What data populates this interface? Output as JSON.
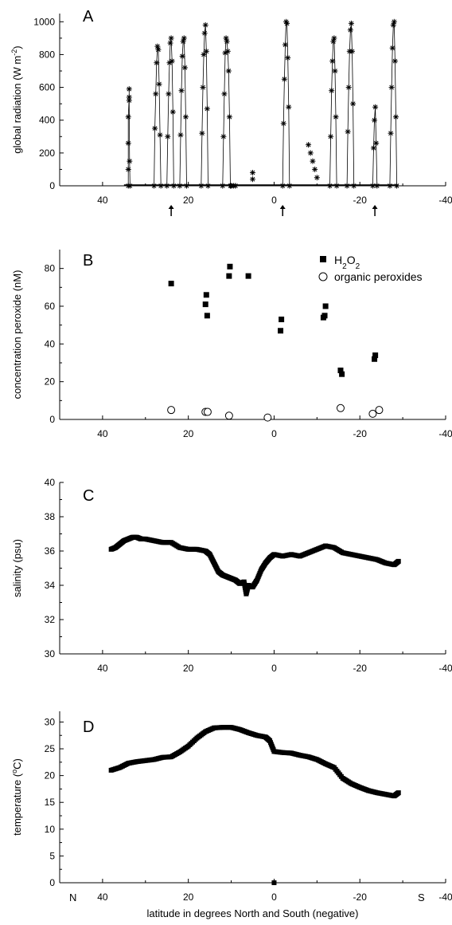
{
  "chart_data": [
    {
      "panel": "A",
      "type": "line",
      "ylabel": "global radiation (W m-2)",
      "ylabel_parts": [
        "global radiation (W m",
        "-2",
        ")"
      ],
      "xlim": [
        50,
        -40
      ],
      "ylim": [
        0,
        1050
      ],
      "xticks": [
        40,
        20,
        0,
        -20,
        -40
      ],
      "yticks": [
        0,
        200,
        400,
        600,
        800,
        1000
      ],
      "arrows_x": [
        24,
        -2,
        -23.5
      ],
      "marker": "asterisk",
      "series": [
        {
          "x": [
            34,
            34,
            34,
            34,
            33.8,
            33.8,
            33.8,
            33.7,
            33.6
          ],
          "y": [
            0,
            100,
            260,
            420,
            540,
            590,
            520,
            150,
            0
          ]
        },
        {
          "x": [
            28,
            27.8,
            27.6,
            27.4,
            27.2,
            27,
            26.8,
            26.6,
            26.4
          ],
          "y": [
            0,
            350,
            560,
            750,
            850,
            830,
            620,
            310,
            0
          ]
        },
        {
          "x": [
            25,
            24.8,
            24.6,
            24.4,
            24.2,
            24,
            23.8,
            23.6,
            23.4
          ],
          "y": [
            0,
            300,
            560,
            750,
            870,
            900,
            760,
            450,
            0
          ]
        },
        {
          "x": [
            22,
            21.8,
            21.6,
            21.4,
            21.2,
            21,
            20.8,
            20.6,
            20.4
          ],
          "y": [
            0,
            310,
            580,
            790,
            880,
            900,
            720,
            420,
            0
          ]
        },
        {
          "x": [
            17,
            16.8,
            16.6,
            16.4,
            16.2,
            16,
            15.8,
            15.6,
            15.4
          ],
          "y": [
            0,
            320,
            600,
            800,
            930,
            980,
            820,
            470,
            0
          ]
        },
        {
          "x": [
            12,
            11.8,
            11.6,
            11.4,
            11.2,
            11,
            10.8,
            10.6,
            10.4,
            10.2
          ],
          "y": [
            0,
            300,
            560,
            810,
            900,
            880,
            820,
            700,
            420,
            0
          ]
        },
        {
          "x": [
            -2,
            -2.2,
            -2.4,
            -2.6,
            -2.8,
            -3,
            -3.2,
            -3.4,
            -3.6
          ],
          "y": [
            0,
            380,
            650,
            860,
            1000,
            990,
            780,
            480,
            0
          ]
        },
        {
          "x": [
            -13,
            -13.2,
            -13.4,
            -13.6,
            -13.8,
            -14,
            -14.2,
            -14.4,
            -14.6
          ],
          "y": [
            0,
            300,
            580,
            760,
            880,
            900,
            700,
            420,
            0
          ]
        },
        {
          "x": [
            -17,
            -17.2,
            -17.4,
            -17.6,
            -17.8,
            -18,
            -18.2,
            -18.4,
            -18.6
          ],
          "y": [
            0,
            330,
            600,
            820,
            950,
            990,
            820,
            500,
            0
          ]
        },
        {
          "x": [
            -23,
            -23.2,
            -23.4,
            -23.6,
            -23.8,
            -24
          ],
          "y": [
            0,
            230,
            400,
            480,
            260,
            0
          ]
        },
        {
          "x": [
            -27,
            -27.2,
            -27.4,
            -27.6,
            -27.8,
            -28,
            -28.2,
            -28.4,
            -28.6
          ],
          "y": [
            0,
            320,
            600,
            840,
            980,
            1000,
            760,
            420,
            0
          ]
        }
      ],
      "extra_points": {
        "x": [
          5,
          5,
          9.5,
          10,
          9,
          -8,
          -8.5,
          -9,
          -9.5,
          -10
        ],
        "y": [
          80,
          40,
          0,
          0,
          0,
          250,
          200,
          150,
          100,
          50
        ]
      }
    },
    {
      "panel": "B",
      "type": "scatter",
      "ylabel": "concentration peroxide (nM)",
      "xlim": [
        50,
        -40
      ],
      "ylim": [
        0,
        90
      ],
      "xticks": [
        40,
        20,
        0,
        -20,
        -40
      ],
      "yticks": [
        0,
        20,
        40,
        60,
        80
      ],
      "series": [
        {
          "name": "H2O2",
          "name_parts": [
            "H",
            "2",
            "O",
            "2"
          ],
          "marker": "square",
          "x": [
            24,
            16,
            15.8,
            15.6,
            10.5,
            10.3,
            6,
            -1.5,
            -1.7,
            -11.5,
            -11.8,
            -12,
            -15.5,
            -15.8,
            -23.4,
            -23.6
          ],
          "y": [
            72,
            61,
            66,
            55,
            76,
            81,
            76,
            47,
            53,
            54,
            55,
            60,
            26,
            24,
            32,
            34
          ]
        },
        {
          "name": "organic peroxides",
          "marker": "circle",
          "x": [
            24,
            16,
            15.5,
            10.5,
            1.5,
            -15.5,
            -23,
            -24.5
          ],
          "y": [
            5,
            4,
            4,
            2,
            1,
            6,
            3,
            5
          ]
        }
      ]
    },
    {
      "panel": "C",
      "type": "scatter",
      "ylabel": "salinity (psu)",
      "xlim": [
        50,
        -40
      ],
      "ylim": [
        30,
        40
      ],
      "xticks": [
        40,
        20,
        0,
        -20,
        -40
      ],
      "yticks": [
        30,
        32,
        34,
        36,
        38,
        40
      ],
      "marker": "square",
      "x": [
        38,
        37,
        36,
        35,
        34,
        33,
        32,
        31,
        30,
        28,
        26,
        24,
        22,
        20,
        18,
        16,
        15,
        14,
        13,
        12,
        11,
        10,
        9,
        8,
        7,
        6.5,
        6,
        5,
        4,
        3,
        2,
        1,
        0,
        -2,
        -4,
        -6,
        -8,
        -10,
        -12,
        -14,
        -16,
        -18,
        -20,
        -22,
        -24,
        -26,
        -28,
        -29
      ],
      "y": [
        36.1,
        36.2,
        36.4,
        36.6,
        36.7,
        36.8,
        36.8,
        36.7,
        36.7,
        36.6,
        36.5,
        36.5,
        36.2,
        36.1,
        36.1,
        36.0,
        35.8,
        35.3,
        34.8,
        34.6,
        34.5,
        34.4,
        34.3,
        34.1,
        34.2,
        33.5,
        34.0,
        33.9,
        34.3,
        34.9,
        35.3,
        35.6,
        35.8,
        35.7,
        35.8,
        35.7,
        35.9,
        36.1,
        36.3,
        36.2,
        35.9,
        35.8,
        35.7,
        35.6,
        35.5,
        35.3,
        35.2,
        35.4
      ]
    },
    {
      "panel": "D",
      "type": "scatter",
      "ylabel": "temperature (°C)",
      "ylabel_parts": [
        "temperature (",
        "o",
        "C)"
      ],
      "xlabel": "latitude in degrees North and South (negative)",
      "xlabel_left": "N",
      "xlabel_right": "S",
      "xlim": [
        50,
        -40
      ],
      "ylim": [
        0,
        32
      ],
      "xticks": [
        40,
        20,
        0,
        -20,
        -40
      ],
      "yticks": [
        0,
        5,
        10,
        15,
        20,
        25,
        30
      ],
      "marker": "square",
      "x": [
        38,
        36,
        34,
        32,
        30,
        28,
        26,
        24,
        22,
        20,
        18,
        16,
        14,
        12,
        10,
        8,
        6,
        4,
        2,
        1,
        0,
        -2,
        -4,
        -6,
        -8,
        -10,
        -12,
        -14,
        -16,
        -18,
        -20,
        -22,
        -24,
        -26,
        -28,
        -29
      ],
      "y": [
        21,
        21.5,
        22.3,
        22.6,
        22.8,
        23,
        23.4,
        23.5,
        24.4,
        25.5,
        27,
        28.2,
        28.9,
        29,
        29,
        28.6,
        28,
        27.5,
        27.2,
        26.5,
        24.5,
        24.3,
        24.2,
        23.8,
        23.5,
        23,
        22.2,
        21.5,
        19.5,
        18.5,
        17.8,
        17.2,
        16.8,
        16.5,
        16.2,
        16.8
      ],
      "outlier": {
        "x": 0,
        "y": 0
      }
    }
  ]
}
